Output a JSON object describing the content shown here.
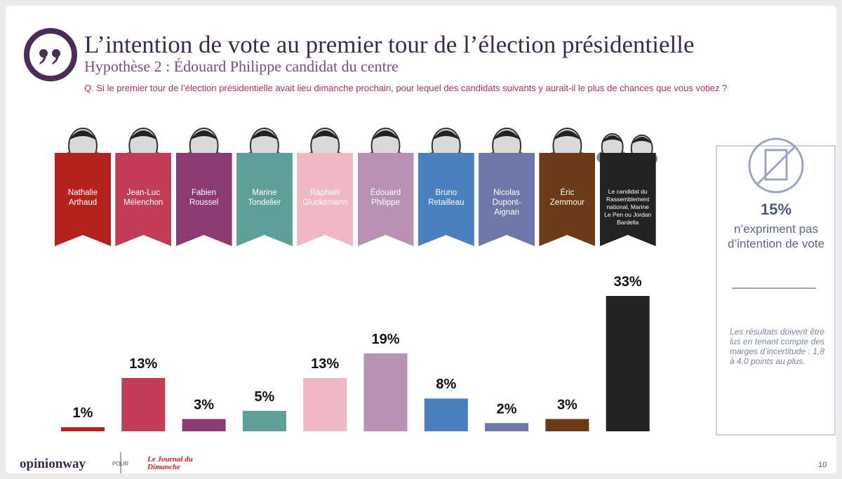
{
  "chart_data": {
    "type": "bar",
    "title": "L’intention de vote au premier tour de l’élection présidentielle",
    "subtitle": "Hypothèse 2 : Édouard Philippe candidat du centre",
    "question": "Q. Si le premier tour de l’élection présidentielle avait lieu dimanche prochain, pour lequel des candidats suivants y aurait-il le plus de chances que vous votiez ?",
    "categories": [
      "Nathalie Arthaud",
      "Jean-Luc Mélenchon",
      "Fabien Roussel",
      "Marine Tondelier",
      "Raphaël Glucksmann",
      "Édouard Philippe",
      "Bruno Retailleau",
      "Nicolas Dupont-Aignan",
      "Éric Zemmour",
      "Le candidat du Rassemblement national, Marine Le Pen ou Jordan Bardella"
    ],
    "values": [
      1,
      13,
      3,
      5,
      13,
      19,
      8,
      2,
      3,
      33
    ],
    "value_labels": [
      "1%",
      "13%",
      "3%",
      "5%",
      "13%",
      "19%",
      "8%",
      "2%",
      "3%",
      "33%"
    ],
    "colors": [
      "#b5221e",
      "#c13c56",
      "#8b3a72",
      "#5e9f98",
      "#f0b7c4",
      "#b891b4",
      "#4a7fc0",
      "#6d78a8",
      "#6b3a17",
      "#222222"
    ]
  },
  "side_panel": {
    "figure": "15%",
    "text": "n’expriment pas d’intention de vote",
    "note": "Les résultats doivent être lus en tenant compte des marges d’incertitude : 1,8 à 4,0 points au plus."
  },
  "footer": {
    "brand": "opinionway",
    "pour": "POUR",
    "partner": "Le Journal du Dimanche",
    "page": "10"
  }
}
